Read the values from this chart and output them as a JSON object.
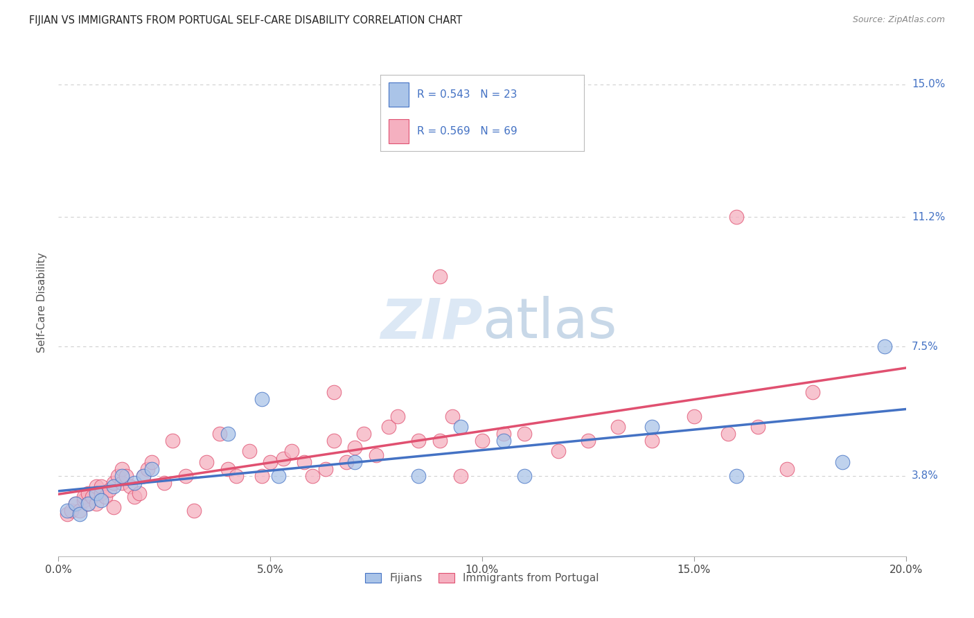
{
  "title": "FIJIAN VS IMMIGRANTS FROM PORTUGAL SELF-CARE DISABILITY CORRELATION CHART",
  "source": "Source: ZipAtlas.com",
  "ylabel": "Self-Care Disability",
  "xlim": [
    0.0,
    0.2
  ],
  "ylim": [
    0.015,
    0.16
  ],
  "xtick_labels": [
    "0.0%",
    "",
    "5.0%",
    "",
    "10.0%",
    "",
    "15.0%",
    "",
    "20.0%"
  ],
  "xtick_values": [
    0.0,
    0.025,
    0.05,
    0.075,
    0.1,
    0.125,
    0.15,
    0.175,
    0.2
  ],
  "ytick_values": [
    0.038,
    0.075,
    0.112,
    0.15
  ],
  "ytick_labels": [
    "3.8%",
    "7.5%",
    "11.2%",
    "15.0%"
  ],
  "grid_color": "#d0d0d0",
  "background_color": "#ffffff",
  "fijian_color": "#aac4e8",
  "portugal_color": "#f5b0c0",
  "fijian_line_color": "#4472c4",
  "portugal_line_color": "#e05070",
  "r_fijian": 0.543,
  "n_fijian": 23,
  "r_portugal": 0.569,
  "n_portugal": 69,
  "fijian_x": [
    0.002,
    0.004,
    0.005,
    0.007,
    0.009,
    0.01,
    0.013,
    0.015,
    0.018,
    0.02,
    0.022,
    0.04,
    0.048,
    0.052,
    0.07,
    0.085,
    0.095,
    0.105,
    0.11,
    0.14,
    0.16,
    0.185,
    0.195
  ],
  "fijian_y": [
    0.028,
    0.03,
    0.027,
    0.03,
    0.033,
    0.031,
    0.035,
    0.038,
    0.036,
    0.038,
    0.04,
    0.05,
    0.06,
    0.038,
    0.042,
    0.038,
    0.052,
    0.048,
    0.038,
    0.052,
    0.038,
    0.042,
    0.075
  ],
  "portugal_x": [
    0.002,
    0.003,
    0.004,
    0.005,
    0.006,
    0.006,
    0.007,
    0.007,
    0.008,
    0.009,
    0.009,
    0.01,
    0.01,
    0.011,
    0.012,
    0.013,
    0.013,
    0.014,
    0.015,
    0.015,
    0.016,
    0.017,
    0.018,
    0.019,
    0.02,
    0.021,
    0.022,
    0.025,
    0.027,
    0.03,
    0.032,
    0.035,
    0.038,
    0.04,
    0.042,
    0.045,
    0.048,
    0.05,
    0.053,
    0.055,
    0.058,
    0.06,
    0.063,
    0.065,
    0.068,
    0.07,
    0.072,
    0.075,
    0.078,
    0.08,
    0.085,
    0.09,
    0.093,
    0.095,
    0.1,
    0.105,
    0.11,
    0.118,
    0.125,
    0.132,
    0.14,
    0.15,
    0.158,
    0.165,
    0.172,
    0.178,
    0.065,
    0.09,
    0.16
  ],
  "portugal_y": [
    0.027,
    0.028,
    0.03,
    0.028,
    0.031,
    0.032,
    0.03,
    0.033,
    0.032,
    0.03,
    0.035,
    0.033,
    0.035,
    0.032,
    0.034,
    0.029,
    0.036,
    0.038,
    0.036,
    0.04,
    0.038,
    0.035,
    0.032,
    0.033,
    0.038,
    0.04,
    0.042,
    0.036,
    0.048,
    0.038,
    0.028,
    0.042,
    0.05,
    0.04,
    0.038,
    0.045,
    0.038,
    0.042,
    0.043,
    0.045,
    0.042,
    0.038,
    0.04,
    0.048,
    0.042,
    0.046,
    0.05,
    0.044,
    0.052,
    0.055,
    0.048,
    0.048,
    0.055,
    0.038,
    0.048,
    0.05,
    0.05,
    0.045,
    0.048,
    0.052,
    0.048,
    0.055,
    0.05,
    0.052,
    0.04,
    0.062,
    0.062,
    0.095,
    0.112
  ]
}
